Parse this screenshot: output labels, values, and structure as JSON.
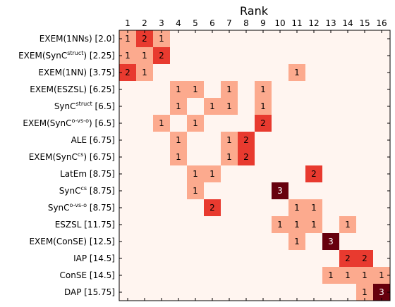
{
  "chart_data": {
    "type": "heatmap",
    "title": "Rank",
    "x_labels": [
      "1",
      "2",
      "3",
      "4",
      "5",
      "6",
      "7",
      "8",
      "9",
      "10",
      "11",
      "12",
      "13",
      "14",
      "15",
      "16"
    ],
    "x_axis_position": "top",
    "y_labels": [
      {
        "base": "EXEM(1NNs)",
        "sup": "",
        "tail": "",
        "score": "[2.0]"
      },
      {
        "base": "EXEM(SynC",
        "sup": "struct",
        "tail": ")",
        "score": "[2.25]"
      },
      {
        "base": "EXEM(1NN)",
        "sup": "",
        "tail": "",
        "score": "[3.75]"
      },
      {
        "base": "EXEM(ESZSL)",
        "sup": "",
        "tail": "",
        "score": "[6.25]"
      },
      {
        "base": "SynC",
        "sup": "struct",
        "tail": "",
        "score": "[6.5]"
      },
      {
        "base": "EXEM(SynC",
        "sup": "o-vs-o",
        "tail": ")",
        "score": "[6.5]"
      },
      {
        "base": "ALE",
        "sup": "",
        "tail": "",
        "score": "[6.75]"
      },
      {
        "base": "EXEM(SynC",
        "sup": "cs",
        "tail": ")",
        "score": "[6.75]"
      },
      {
        "base": "LatEm",
        "sup": "",
        "tail": "",
        "score": "[8.75]"
      },
      {
        "base": "SynC",
        "sup": "cs",
        "tail": "",
        "score": "[8.75]"
      },
      {
        "base": "SynC",
        "sup": "o-vs-o",
        "tail": "",
        "score": "[8.75]"
      },
      {
        "base": "ESZSL",
        "sup": "",
        "tail": "",
        "score": "[11.75]"
      },
      {
        "base": "EXEM(ConSE)",
        "sup": "",
        "tail": "",
        "score": "[12.5]"
      },
      {
        "base": "IAP",
        "sup": "",
        "tail": "",
        "score": "[14.5]"
      },
      {
        "base": "ConSE",
        "sup": "",
        "tail": "",
        "score": "[14.5]"
      },
      {
        "base": "DAP",
        "sup": "",
        "tail": "",
        "score": "[15.75]"
      }
    ],
    "values": [
      [
        1,
        2,
        1,
        0,
        0,
        0,
        0,
        0,
        0,
        0,
        0,
        0,
        0,
        0,
        0,
        0
      ],
      [
        1,
        1,
        2,
        0,
        0,
        0,
        0,
        0,
        0,
        0,
        0,
        0,
        0,
        0,
        0,
        0
      ],
      [
        2,
        1,
        0,
        0,
        0,
        0,
        0,
        0,
        0,
        0,
        1,
        0,
        0,
        0,
        0,
        0
      ],
      [
        0,
        0,
        0,
        1,
        1,
        0,
        1,
        0,
        1,
        0,
        0,
        0,
        0,
        0,
        0,
        0
      ],
      [
        0,
        0,
        0,
        1,
        0,
        1,
        1,
        0,
        1,
        0,
        0,
        0,
        0,
        0,
        0,
        0
      ],
      [
        0,
        0,
        1,
        0,
        1,
        0,
        0,
        0,
        2,
        0,
        0,
        0,
        0,
        0,
        0,
        0
      ],
      [
        0,
        0,
        0,
        1,
        0,
        0,
        1,
        2,
        0,
        0,
        0,
        0,
        0,
        0,
        0,
        0
      ],
      [
        0,
        0,
        0,
        1,
        0,
        0,
        1,
        2,
        0,
        0,
        0,
        0,
        0,
        0,
        0,
        0
      ],
      [
        0,
        0,
        0,
        0,
        1,
        1,
        0,
        0,
        0,
        0,
        0,
        2,
        0,
        0,
        0,
        0
      ],
      [
        0,
        0,
        0,
        0,
        1,
        0,
        0,
        0,
        0,
        3,
        0,
        0,
        0,
        0,
        0,
        0
      ],
      [
        0,
        0,
        0,
        0,
        0,
        2,
        0,
        0,
        0,
        0,
        1,
        1,
        0,
        0,
        0,
        0
      ],
      [
        0,
        0,
        0,
        0,
        0,
        0,
        0,
        0,
        0,
        1,
        1,
        1,
        0,
        1,
        0,
        0
      ],
      [
        0,
        0,
        0,
        0,
        0,
        0,
        0,
        0,
        0,
        0,
        1,
        0,
        3,
        0,
        0,
        0
      ],
      [
        0,
        0,
        0,
        0,
        0,
        0,
        0,
        0,
        0,
        0,
        0,
        0,
        0,
        2,
        2,
        0
      ],
      [
        0,
        0,
        0,
        0,
        0,
        0,
        0,
        0,
        0,
        0,
        0,
        0,
        1,
        1,
        1,
        1
      ],
      [
        0,
        0,
        0,
        0,
        0,
        0,
        0,
        0,
        0,
        0,
        0,
        0,
        0,
        0,
        1,
        3
      ]
    ],
    "colormap": {
      "0": "#fff5f0",
      "1": "#fcaa8e",
      "2": "#e83a2f",
      "3": "#67000d"
    },
    "text_colors": {
      "1": "#000000",
      "2": "#000000",
      "3": "#ffffff"
    },
    "show_zero_labels": false,
    "grid": false
  }
}
